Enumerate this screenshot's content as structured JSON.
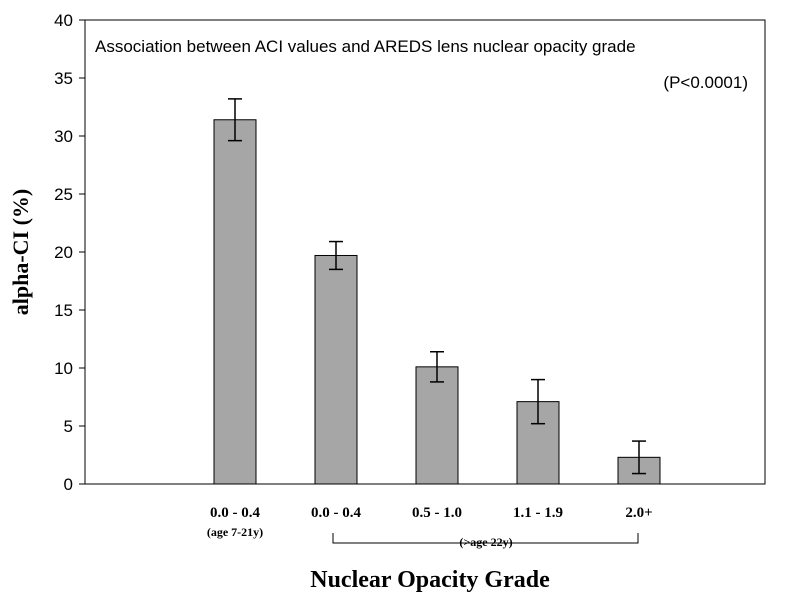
{
  "chart_data": {
    "type": "bar",
    "title": "Association between ACI values and AREDS lens nuclear opacity grade",
    "annotation": "(P<0.0001)",
    "xlabel": "Nuclear Opacity Grade",
    "ylabel": "alpha-CI (%)",
    "ylim": [
      0,
      40
    ],
    "yticks": [
      "0",
      "5",
      "10",
      "15",
      "20",
      "25",
      "30",
      "35",
      "40"
    ],
    "categories": [
      "0.0 - 0.4",
      "0.0 - 0.4",
      "0.5 - 1.0",
      "1.1 - 1.9",
      "2.0+"
    ],
    "values": [
      31.4,
      19.7,
      10.1,
      7.1,
      2.3
    ],
    "error_bars": [
      1.8,
      1.2,
      1.3,
      1.9,
      1.4
    ],
    "category_notes": {
      "first_group": "(age 7-21y)",
      "bracket_group": "(>age 22y)"
    },
    "bar_color": "#a6a6a6",
    "grid": false
  }
}
